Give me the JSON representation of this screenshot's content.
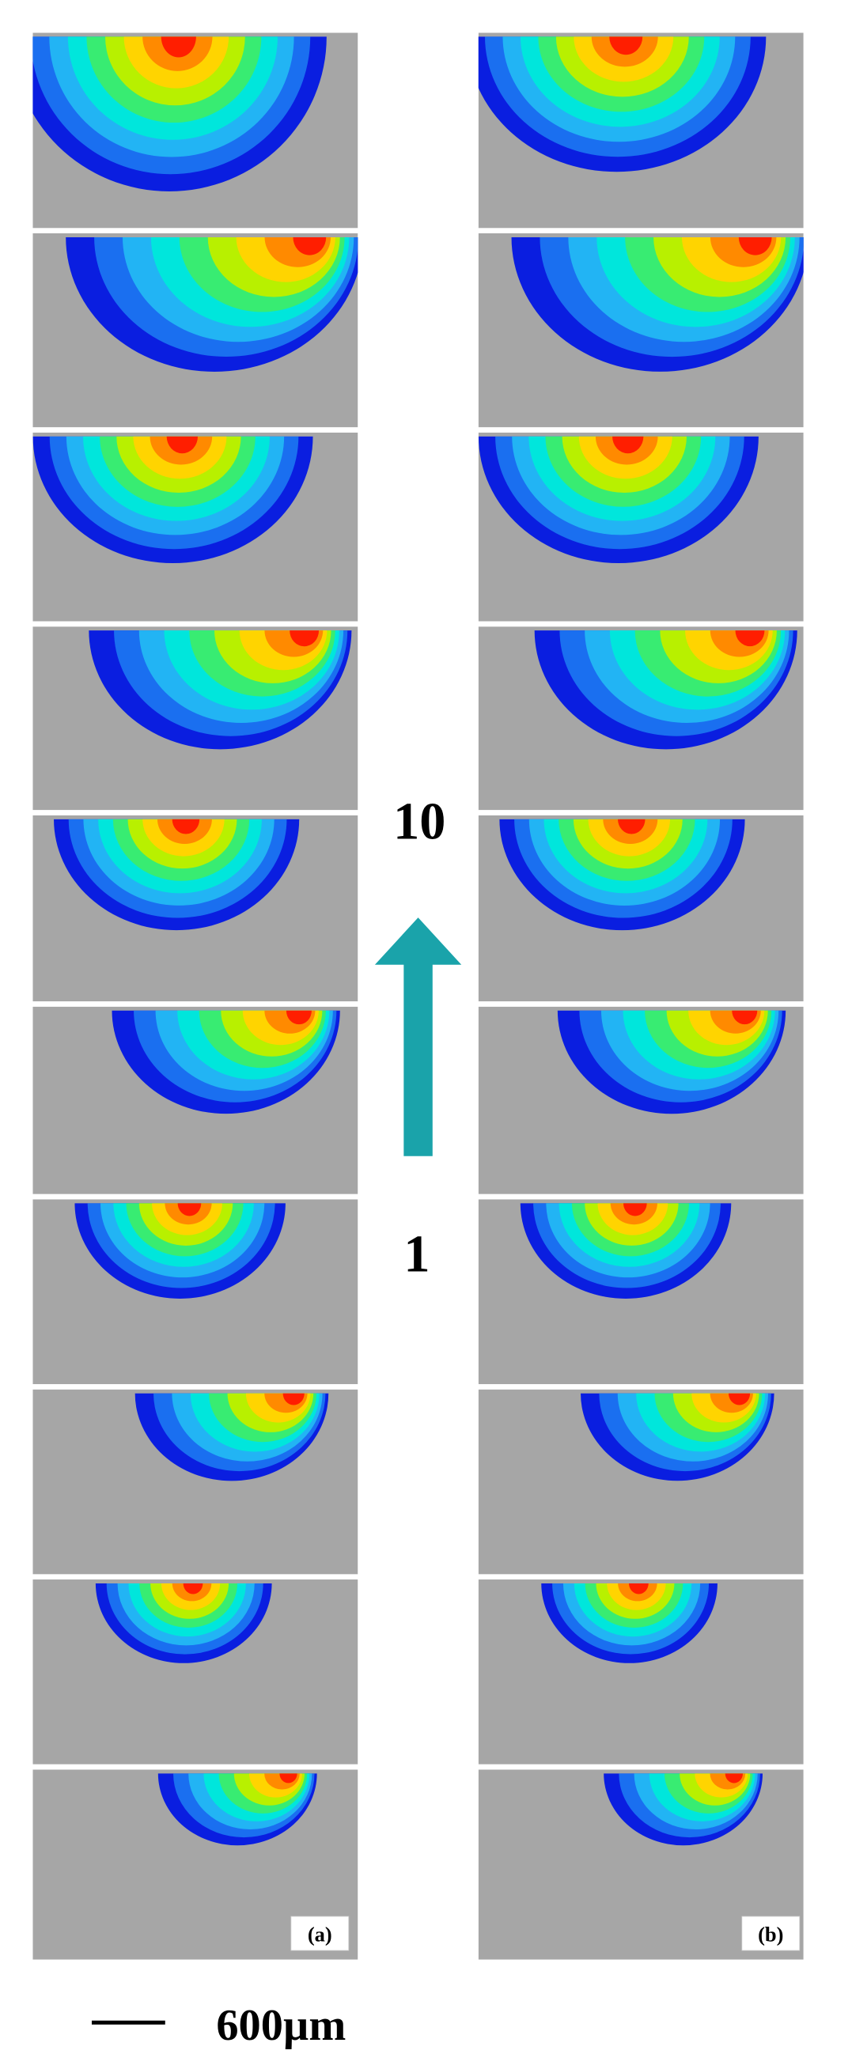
{
  "labels": {
    "top": "10",
    "bottom": "1"
  },
  "panels": {
    "a": "(a)",
    "b": "(b)"
  },
  "scale_bar": "600µm"
}
